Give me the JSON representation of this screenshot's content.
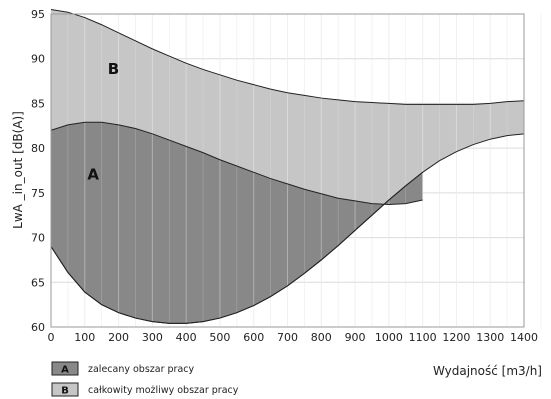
{
  "chart_data": {
    "type": "area",
    "xlabel": "Wydajność [m3/h]",
    "ylabel": "LwA _in_out [dB(A)]",
    "xlim": [
      0,
      1400
    ],
    "ylim": [
      60,
      95
    ],
    "x_ticks": [
      "0",
      "100",
      "200",
      "300",
      "400",
      "500",
      "600",
      "700",
      "800",
      "900",
      "1000",
      "1100",
      "1200",
      "1300",
      "1400"
    ],
    "y_ticks": [
      "60",
      "65",
      "70",
      "75",
      "80",
      "85",
      "90",
      "95"
    ],
    "grid": true,
    "colors": {
      "region_a": "#888888",
      "region_b": "#c6c6c6",
      "grid": "#e8e8e8",
      "boundary": "#222222"
    },
    "regions": [
      {
        "key": "B",
        "legend": "całkowity możliwy obszar pracy",
        "upper": {
          "x": [
            0,
            50,
            100,
            150,
            200,
            250,
            300,
            350,
            400,
            450,
            500,
            550,
            600,
            650,
            700,
            750,
            800,
            850,
            900,
            950,
            1000,
            1050,
            1100,
            1150,
            1200,
            1250,
            1300,
            1350,
            1400
          ],
          "y": [
            95.5,
            95.2,
            94.6,
            93.8,
            92.9,
            92.0,
            91.1,
            90.3,
            89.5,
            88.8,
            88.2,
            87.6,
            87.1,
            86.6,
            86.2,
            85.9,
            85.6,
            85.4,
            85.2,
            85.1,
            85.0,
            84.9,
            84.9,
            84.9,
            84.9,
            84.9,
            85.0,
            85.2,
            85.3
          ]
        },
        "lower": {
          "x": [
            0,
            50,
            100,
            150,
            200,
            250,
            300,
            350,
            400,
            450,
            500,
            550,
            600,
            650,
            700,
            750,
            800,
            850,
            900,
            950,
            1000,
            1050,
            1100,
            1150,
            1200,
            1250,
            1300,
            1350,
            1400
          ],
          "y": [
            69.0,
            66.1,
            63.9,
            62.5,
            61.6,
            61.0,
            60.6,
            60.4,
            60.4,
            60.6,
            61.0,
            61.6,
            62.4,
            63.4,
            64.6,
            66.0,
            67.5,
            69.1,
            70.8,
            72.5,
            74.2,
            75.8,
            77.3,
            78.6,
            79.6,
            80.4,
            81.0,
            81.4,
            81.6
          ]
        }
      },
      {
        "key": "A",
        "legend": "zalecany obszar pracy",
        "upper": {
          "x": [
            0,
            50,
            100,
            150,
            200,
            250,
            300,
            350,
            400,
            450,
            500,
            550,
            600,
            650,
            700,
            750,
            800,
            850,
            900,
            950,
            1000,
            1050,
            1100
          ],
          "y": [
            82.0,
            82.6,
            82.9,
            82.9,
            82.6,
            82.2,
            81.6,
            80.9,
            80.2,
            79.5,
            78.7,
            78.0,
            77.3,
            76.6,
            76.0,
            75.4,
            74.9,
            74.4,
            74.1,
            73.8,
            73.7,
            73.8,
            74.2
          ]
        },
        "lower": {
          "x": [
            0,
            50,
            100,
            150,
            200,
            250,
            300,
            350,
            400,
            450,
            500,
            550,
            600,
            650,
            700,
            750,
            800,
            850,
            900,
            950,
            1000,
            1050,
            1100
          ],
          "y": [
            69.0,
            66.1,
            63.9,
            62.5,
            61.6,
            61.0,
            60.6,
            60.4,
            60.4,
            60.6,
            61.0,
            61.6,
            62.4,
            63.4,
            64.6,
            66.0,
            67.5,
            69.1,
            70.8,
            72.5,
            74.2,
            75.8,
            77.3
          ]
        }
      }
    ],
    "annotations": [
      {
        "text": "A",
        "x": 125,
        "y": 76.5
      },
      {
        "text": "B",
        "x": 185,
        "y": 88.3
      }
    ]
  }
}
